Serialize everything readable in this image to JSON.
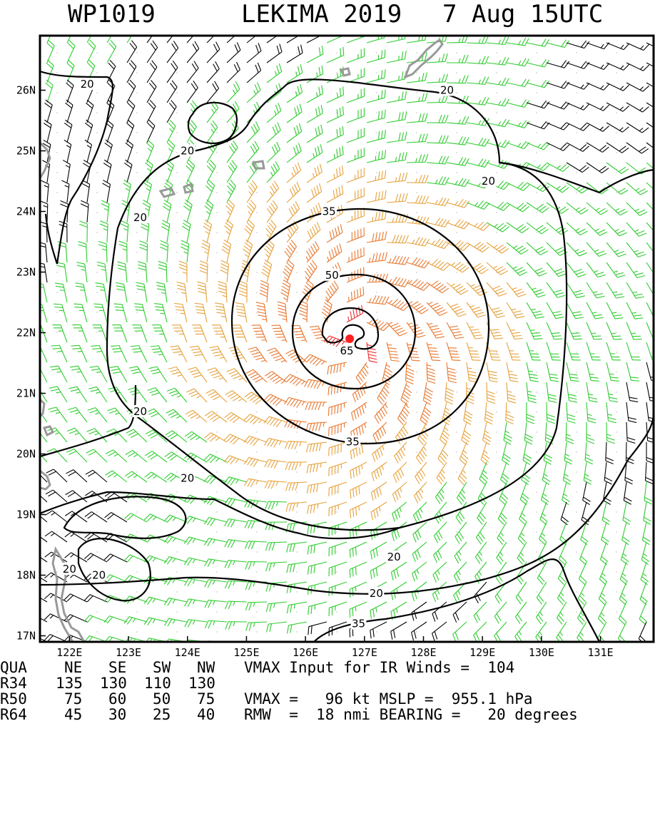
{
  "title": {
    "storm_id": "WP1019",
    "storm_name": "LEKIMA 2019",
    "valid_time": "7 Aug 15UTC"
  },
  "map": {
    "lon_range": [
      121.5,
      131.9
    ],
    "lat_range": [
      16.9,
      26.9
    ],
    "lon_ticks": [
      "122E",
      "123E",
      "124E",
      "125E",
      "126E",
      "127E",
      "128E",
      "129E",
      "130E",
      "131E"
    ],
    "lat_ticks": [
      "17N",
      "18N",
      "19N",
      "20N",
      "21N",
      "22N",
      "23N",
      "24N",
      "25N",
      "26N"
    ],
    "storm_center": {
      "lon": 126.75,
      "lat": 21.9
    },
    "contour_labels": [
      {
        "text": "20",
        "lon": 122.3,
        "lat": 26.1
      },
      {
        "text": "20",
        "lon": 128.4,
        "lat": 26.0
      },
      {
        "text": "20",
        "lon": 124.0,
        "lat": 25.0
      },
      {
        "text": "20",
        "lon": 129.1,
        "lat": 24.5
      },
      {
        "text": "20",
        "lon": 123.2,
        "lat": 23.9
      },
      {
        "text": "35",
        "lon": 126.4,
        "lat": 24.0
      },
      {
        "text": "50",
        "lon": 126.45,
        "lat": 22.95
      },
      {
        "text": "65",
        "lon": 126.7,
        "lat": 21.7
      },
      {
        "text": "35",
        "lon": 126.8,
        "lat": 20.2
      },
      {
        "text": "20",
        "lon": 123.2,
        "lat": 20.7
      },
      {
        "text": "20",
        "lon": 124.0,
        "lat": 19.6
      },
      {
        "text": "20",
        "lon": 127.5,
        "lat": 18.3
      },
      {
        "text": "20",
        "lon": 122.5,
        "lat": 18.0
      },
      {
        "text": "20",
        "lon": 122.0,
        "lat": 18.1
      },
      {
        "text": "20",
        "lon": 127.2,
        "lat": 17.7
      },
      {
        "text": "35",
        "lon": 126.9,
        "lat": 17.2
      }
    ],
    "colors": {
      "gt_64": "#ee2c2c",
      "gt_50": "#e8772e",
      "gt_34": "#e6a13a",
      "gt_20": "#2ecc2e",
      "lt_20": "#000000",
      "coast": "#999999"
    }
  },
  "stats": {
    "header": {
      "quad": "QUA",
      "ne": "NE",
      "se": "SE",
      "sw": "SW",
      "nw": "NW"
    },
    "rows": [
      {
        "label": "R34",
        "ne": "135",
        "se": "130",
        "sw": "110",
        "nw": "130"
      },
      {
        "label": "R50",
        "ne": "75",
        "se": "60",
        "sw": "50",
        "nw": "75"
      },
      {
        "label": "R64",
        "ne": "45",
        "se": "30",
        "sw": "25",
        "nw": "40"
      }
    ],
    "info": {
      "line1": "VMAX Input for IR Winds =  104",
      "line2": "VMAX =   96 kt MSLP =  955.1 hPa",
      "line3": "RMW  =  18 nmi BEARING =   20 degrees"
    }
  }
}
